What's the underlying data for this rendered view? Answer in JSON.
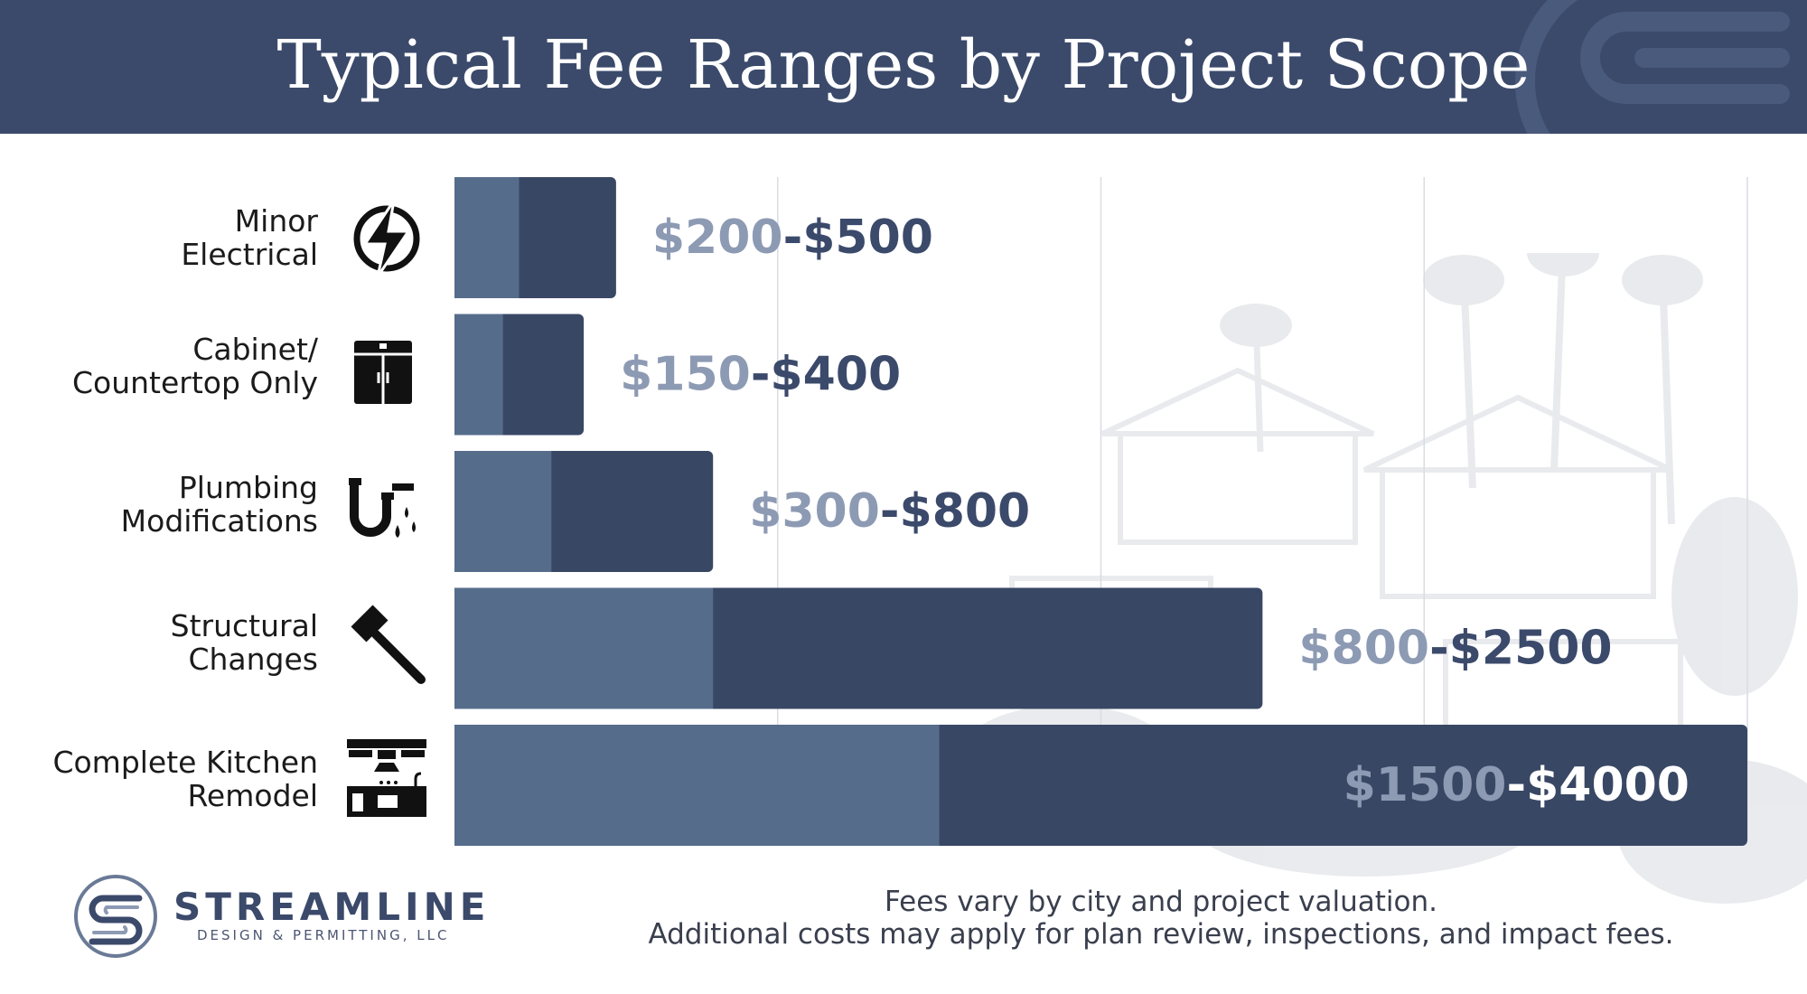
{
  "header": {
    "title": "Typical Fee Ranges by Project Scope"
  },
  "colors": {
    "header_bg": "#3b4a6b",
    "bar_min": "#566c8b",
    "bar_max": "#384764",
    "label_low": "#8d9ab3",
    "label_high": "#3b4a6b",
    "label_low_inside": "#8d9ab3",
    "label_high_inside": "#ffffff"
  },
  "chart_data": {
    "type": "bar",
    "orientation": "horizontal",
    "stacked_range": true,
    "categories": [
      "Minor Electrical",
      "Cabinet/ Countertop Only",
      "Plumbing Modifications",
      "Structural Changes",
      "Complete Kitchen Remodel"
    ],
    "label_lines": [
      [
        "Minor",
        "Electrical"
      ],
      [
        "Cabinet/",
        "Countertop Only"
      ],
      [
        "Plumbing",
        "Modifications"
      ],
      [
        "Structural",
        "Changes"
      ],
      [
        "Complete Kitchen",
        "Remodel"
      ]
    ],
    "icons": [
      "lightning-bolt",
      "cabinet",
      "dripping-pipe",
      "hammer",
      "kitchen"
    ],
    "series": [
      {
        "values": [
          200,
          150,
          300,
          800,
          1500
        ]
      },
      {
        "values": [
          500,
          400,
          800,
          2500,
          4000
        ]
      }
    ],
    "range_labels": [
      {
        "low": "$200",
        "sep": "-",
        "high": "$500"
      },
      {
        "low": "$150",
        "sep": "-",
        "high": "$400"
      },
      {
        "low": "$300",
        "sep": "-",
        "high": "$800"
      },
      {
        "low": "$800",
        "sep": "-",
        "high": "$2500"
      },
      {
        "low": "$1500",
        "sep": "-",
        "high": "$4000"
      }
    ],
    "xlim": [
      0,
      4000
    ],
    "grid_lines": [
      1000,
      2000,
      3000,
      4000
    ],
    "grid": true,
    "legend": "none"
  },
  "brand": {
    "name": "STREAMLINE",
    "tagline": "DESIGN & PERMITTING, LLC"
  },
  "footnote": {
    "line1": "Fees vary by city and project valuation.",
    "line2": "Additional costs may apply for plan review, inspections, and impact fees."
  }
}
